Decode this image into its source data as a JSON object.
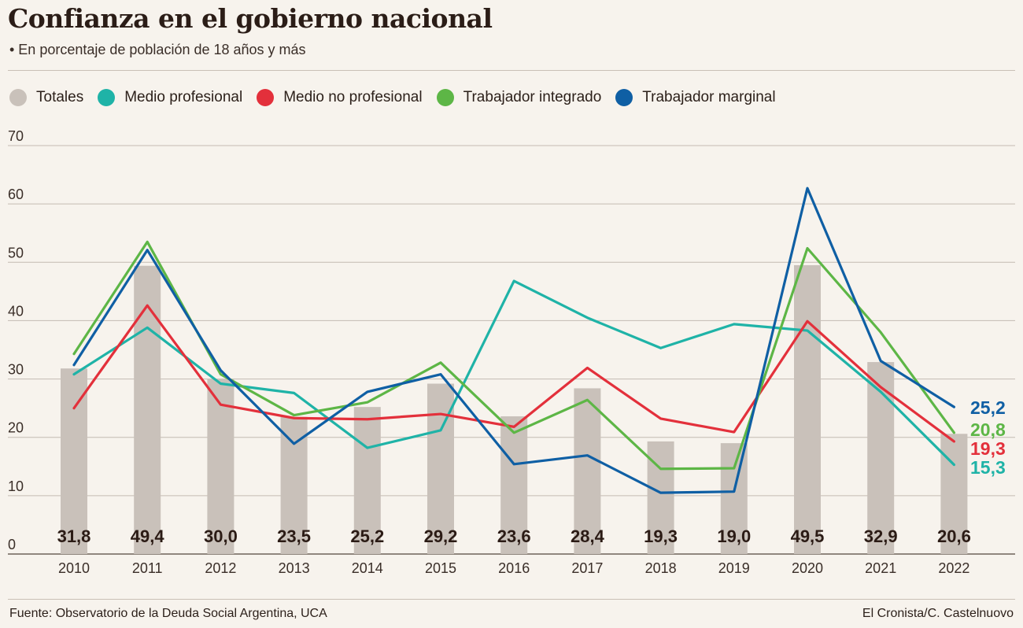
{
  "title": "Confianza en el gobierno nacional",
  "subtitle": "• En porcentaje de población de 18 años y más",
  "footer": {
    "source": "Fuente: Observatorio de la Deuda Social Argentina, UCA",
    "credit": "El Cronista/C. Castelnuovo"
  },
  "legend": [
    {
      "label": "Totales",
      "color": "#c9c1ba"
    },
    {
      "label": "Medio profesional",
      "color": "#1fb3a7"
    },
    {
      "label": "Medio no profesional",
      "color": "#e3303b"
    },
    {
      "label": "Trabajador integrado",
      "color": "#5db646"
    },
    {
      "label": "Trabajador marginal",
      "color": "#0f5fa4"
    }
  ],
  "chart_data": {
    "type": "bar+line",
    "categories": [
      "2010",
      "2011",
      "2012",
      "2013",
      "2014",
      "2015",
      "2016",
      "2017",
      "2018",
      "2019",
      "2020",
      "2021",
      "2022"
    ],
    "ylim": [
      0,
      70
    ],
    "yticks": [
      "0",
      "10",
      "20",
      "30",
      "40",
      "50",
      "60",
      "70"
    ],
    "grid": true,
    "bars": {
      "name": "Totales",
      "color": "#c9c1ba",
      "values": [
        31.8,
        49.4,
        30.0,
        23.5,
        25.2,
        29.2,
        23.6,
        28.4,
        19.3,
        19.0,
        49.5,
        32.9,
        20.6
      ],
      "labels": [
        "31,8",
        "49,4",
        "30,0",
        "23,5",
        "25,2",
        "29,2",
        "23,6",
        "28,4",
        "19,3",
        "19,0",
        "49,5",
        "32,9",
        "20,6"
      ]
    },
    "series": [
      {
        "name": "Medio profesional",
        "color": "#1fb3a7",
        "values": [
          30.8,
          38.8,
          29.2,
          27.6,
          18.2,
          21.2,
          46.8,
          40.5,
          35.3,
          39.4,
          38.3,
          27.8,
          15.3
        ],
        "end_label": "15,3"
      },
      {
        "name": "Medio no profesional",
        "color": "#e3303b",
        "values": [
          25.0,
          42.6,
          25.6,
          23.3,
          23.1,
          24.0,
          21.8,
          31.9,
          23.2,
          20.9,
          39.9,
          28.6,
          19.3
        ],
        "end_label": "19,3"
      },
      {
        "name": "Trabajador integrado",
        "color": "#5db646",
        "values": [
          34.3,
          53.5,
          30.8,
          23.8,
          26.0,
          32.8,
          20.8,
          26.4,
          14.6,
          14.7,
          52.4,
          38.0,
          20.8
        ],
        "end_label": "20,8"
      },
      {
        "name": "Trabajador marginal",
        "color": "#0f5fa4",
        "values": [
          32.4,
          52.1,
          31.5,
          18.9,
          27.8,
          30.8,
          15.4,
          16.9,
          10.5,
          10.7,
          62.7,
          33.1,
          25.2
        ],
        "end_label": "25,2"
      }
    ]
  }
}
